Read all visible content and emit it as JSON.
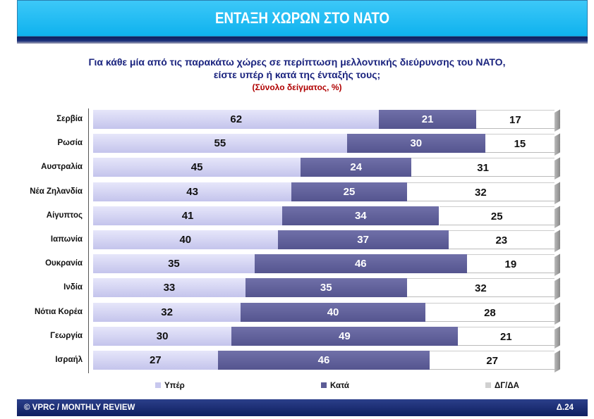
{
  "header": {
    "title": "ΕΝΤΑΞΗ ΧΩΡΩΝ ΣΤΟ ΝΑΤΟ"
  },
  "question": {
    "line1": "Για κάθε μία από τις παρακάτω χώρες σε περίπτωση μελλοντικής διεύρυνσης του ΝΑΤΟ,",
    "line2": "είστε υπέρ ή κατά της ένταξής τους;",
    "note": "(Σύνολο δείγματος, %)"
  },
  "chart_data": {
    "type": "bar",
    "stacked": true,
    "orientation": "horizontal",
    "title": "ΕΝΤΑΞΗ ΧΩΡΩΝ ΣΤΟ ΝΑΤΟ",
    "categories": [
      "Σερβία",
      "Ρωσία",
      "Αυστραλία",
      "Νέα Ζηλανδία",
      "Αίγυπτος",
      "Ιαπωνία",
      "Ουκρανία",
      "Ινδία",
      "Νότια Κορέα",
      "Γεωργία",
      "Ισραήλ"
    ],
    "series": [
      {
        "name": "Υπέρ",
        "color": "#c8c8ee",
        "values": [
          62,
          55,
          45,
          43,
          41,
          40,
          35,
          33,
          32,
          30,
          27
        ]
      },
      {
        "name": "Κατά",
        "color": "#5c5c96",
        "values": [
          21,
          30,
          24,
          25,
          34,
          37,
          46,
          35,
          40,
          49,
          46
        ]
      },
      {
        "name": "ΔΓ/ΔΑ",
        "color": "#d0d0d0",
        "values": [
          17,
          15,
          31,
          32,
          25,
          23,
          19,
          32,
          28,
          21,
          27
        ]
      }
    ],
    "xlim": [
      0,
      100
    ],
    "legend": "bottom"
  },
  "footer": {
    "left": "© VPRC / MONTHLY REVIEW",
    "right": "Δ.24"
  }
}
